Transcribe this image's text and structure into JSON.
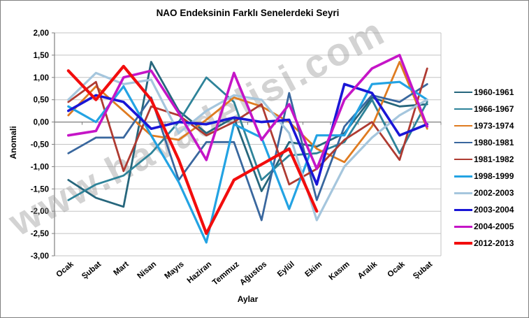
{
  "figure": {
    "background": "#ffffff",
    "border_color": "#7f7f7f"
  },
  "watermark": {
    "text": "www.havadelisi.com",
    "color": "rgba(150,150,150,0.42)"
  },
  "colors": {
    "grid": "#c3c3c3",
    "axis": "#808080",
    "text": "#000000"
  },
  "chart_data": {
    "type": "line",
    "title": "NAO Endeksinin Farklı Senelerdeki Seyri",
    "xlabel": "Aylar",
    "ylabel": "Anomali",
    "ylim": [
      -3.0,
      2.0
    ],
    "ytick_step": 0.5,
    "ytick_labels": [
      "2,00",
      "1,50",
      "1,00",
      "0,50",
      "0,00",
      "-0,50",
      "-1,00",
      "-1,50",
      "-2,00",
      "-2,50",
      "-3,00"
    ],
    "grid": "horizontal-only",
    "legend_position": "right",
    "categories": [
      "Ocak",
      "Şubat",
      "Mart",
      "Nisan",
      "Mayıs",
      "Haziran",
      "Temmuz",
      "Ağustos",
      "Eylül",
      "Ekim",
      "Kasım",
      "Aralık",
      "Ocak",
      "Şubat"
    ],
    "series": [
      {
        "name": "1960-1961",
        "color": "#26667c",
        "width": 2.8,
        "values": [
          -1.3,
          -1.7,
          -1.9,
          1.35,
          0.25,
          -0.25,
          0.1,
          -1.55,
          -0.45,
          -0.55,
          -0.25,
          0.55,
          0.35,
          0.4
        ]
      },
      {
        "name": "1966-1967",
        "color": "#2e8399",
        "width": 2.8,
        "values": [
          -1.75,
          -1.4,
          -1.2,
          -0.7,
          0.0,
          1.0,
          0.45,
          -1.3,
          -0.75,
          -0.7,
          -0.45,
          0.5,
          -0.7,
          0.45
        ]
      },
      {
        "name": "1973-1974",
        "color": "#df7b20",
        "width": 2.8,
        "values": [
          0.15,
          0.8,
          0.25,
          -0.3,
          -0.4,
          0.05,
          0.55,
          0.35,
          0.0,
          -0.6,
          -0.9,
          -0.1,
          1.35,
          -0.15
        ]
      },
      {
        "name": "1980-1981",
        "color": "#39679e",
        "width": 2.8,
        "values": [
          -0.7,
          -0.35,
          -0.35,
          0.55,
          -1.3,
          -0.45,
          -0.45,
          -2.2,
          0.65,
          -1.75,
          -0.1,
          0.6,
          0.45,
          0.85
        ]
      },
      {
        "name": "1981-1982",
        "color": "#af3b32",
        "width": 2.8,
        "values": [
          0.45,
          0.9,
          -1.1,
          0.35,
          0.15,
          -0.3,
          0.0,
          0.4,
          -1.4,
          -1.05,
          -0.4,
          0.0,
          -0.85,
          1.2
        ]
      },
      {
        "name": "1998-1999",
        "color": "#23a3e3",
        "width": 3.2,
        "values": [
          0.35,
          0.0,
          0.8,
          -0.3,
          -1.35,
          -2.7,
          -0.05,
          -0.35,
          -1.95,
          -0.3,
          -0.3,
          0.85,
          0.9,
          0.5
        ]
      },
      {
        "name": "2002-2003",
        "color": "#a5c6dd",
        "width": 3.2,
        "values": [
          0.5,
          1.1,
          0.85,
          0.95,
          -0.25,
          0.25,
          0.6,
          0.5,
          -0.25,
          -2.2,
          -1.0,
          -0.35,
          0.15,
          0.5
        ]
      },
      {
        "name": "2003-2004",
        "color": "#1a16d6",
        "width": 3.6,
        "values": [
          0.25,
          0.6,
          0.45,
          -0.15,
          0.0,
          -0.05,
          0.1,
          0.0,
          0.05,
          -1.4,
          0.85,
          0.65,
          -0.3,
          -0.05
        ]
      },
      {
        "name": "2004-2005",
        "color": "#c515c7",
        "width": 3.6,
        "values": [
          -0.3,
          -0.2,
          1.0,
          1.15,
          0.2,
          -0.85,
          1.1,
          -0.4,
          0.4,
          -1.05,
          0.5,
          1.2,
          1.5,
          -0.1
        ]
      },
      {
        "name": "2012-2013",
        "color": "#f20d0d",
        "width": 4.2,
        "values": [
          1.15,
          0.5,
          1.25,
          0.5,
          -0.85,
          -2.5,
          -1.3,
          -0.95,
          -0.6,
          -2.0,
          null,
          null,
          null,
          null
        ]
      }
    ]
  }
}
